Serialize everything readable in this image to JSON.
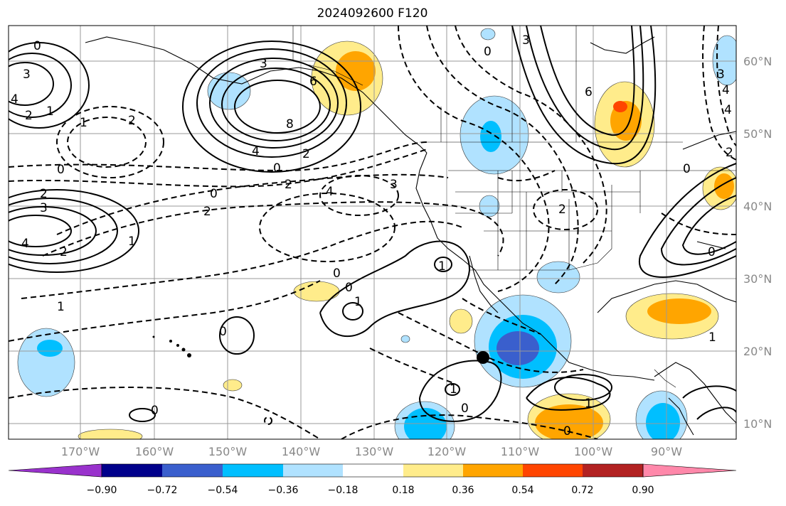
{
  "title": "2024092600 F120",
  "lat_labels": [
    "60°N",
    "50°N",
    "40°N",
    "30°N",
    "20°N",
    "10°N"
  ],
  "lon_labels": [
    "170°W",
    "160°W",
    "150°W",
    "140°W",
    "130°W",
    "120°W",
    "110°W",
    "100°W",
    "90°W"
  ],
  "colorbar": {
    "ticks": [
      "−0.90",
      "−0.72",
      "−0.54",
      "−0.36",
      "−0.18",
      "0.18",
      "0.36",
      "0.54",
      "0.72",
      "0.90"
    ],
    "colors": [
      "#9932cc",
      "#00008b",
      "#3a5fcd",
      "#00bfff",
      "#b0e2ff",
      "#ffffff",
      "#ffec8b",
      "#ffa500",
      "#ff4500",
      "#b22222",
      "#ff88aa"
    ]
  },
  "contour_labels": {
    "c1": "0",
    "c2": "3",
    "c3": "4",
    "c4": "2",
    "c5": "1",
    "c6": "1",
    "c7": "2",
    "c8": "3",
    "c9": "6",
    "c10": "8",
    "c11": "4",
    "c12": "2",
    "c13": "0",
    "c14": "2",
    "c15": "0",
    "c16": "2",
    "c17": "4",
    "c18": "3",
    "c19": "0",
    "c20": "2",
    "c21": "3",
    "c22": "4",
    "c23": "2",
    "c24": "1",
    "c25": "1",
    "c26": "0",
    "c27": "0",
    "c28": "1",
    "c29": "1",
    "c30": "0",
    "c31": "0",
    "c32": "1",
    "c33": "0",
    "c34": "1",
    "c35": "0",
    "c36": "2",
    "c37": "6",
    "c38": "3",
    "c39": "4",
    "c40": "2",
    "c41": "0",
    "c42": "3",
    "c43": "4",
    "c44": "0",
    "c45": "0",
    "c46": "1"
  }
}
